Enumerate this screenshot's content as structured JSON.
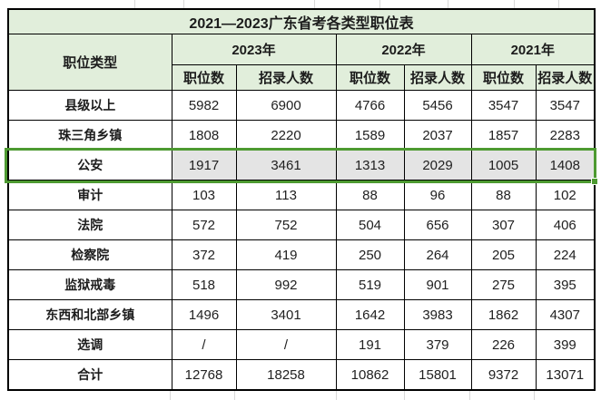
{
  "colors": {
    "header_fill_green": "#e1eedb",
    "table_border": "#000000",
    "selection_border_green": "#4d9a31",
    "selection_fill_gray": "#e4e4e4",
    "faint_gridline": "#d9d9d9",
    "text": "#1c1c1c"
  },
  "table": {
    "title": "2021—2023广东省考各类型职位表",
    "corner_header": "职位类型",
    "year_groups": [
      {
        "label": "2023年",
        "sub_headers": [
          "职位数",
          "招录人数"
        ]
      },
      {
        "label": "2022年",
        "sub_headers": [
          "职位数",
          "招录人数"
        ]
      },
      {
        "label": "2021年",
        "sub_headers": [
          "职位数",
          "招录人数"
        ]
      }
    ],
    "rows": [
      {
        "label": "县级以上",
        "values": [
          "5982",
          "6900",
          "4766",
          "5456",
          "3547",
          "3547"
        ],
        "selected": false
      },
      {
        "label": "珠三角乡镇",
        "values": [
          "1808",
          "2220",
          "1589",
          "2037",
          "1857",
          "2283"
        ],
        "selected": false
      },
      {
        "label": "公安",
        "values": [
          "1917",
          "3461",
          "1313",
          "2029",
          "1005",
          "1408"
        ],
        "selected": true
      },
      {
        "label": "审计",
        "values": [
          "103",
          "113",
          "88",
          "96",
          "88",
          "102"
        ],
        "selected": false
      },
      {
        "label": "法院",
        "values": [
          "572",
          "752",
          "504",
          "656",
          "307",
          "406"
        ],
        "selected": false
      },
      {
        "label": "检察院",
        "values": [
          "372",
          "419",
          "250",
          "264",
          "205",
          "224"
        ],
        "selected": false
      },
      {
        "label": "监狱戒毒",
        "values": [
          "518",
          "992",
          "519",
          "901",
          "275",
          "395"
        ],
        "selected": false
      },
      {
        "label": "东西和北部乡镇",
        "values": [
          "1496",
          "3401",
          "1642",
          "3983",
          "1862",
          "4307"
        ],
        "selected": false
      },
      {
        "label": "选调",
        "values": [
          "/",
          "/",
          "191",
          "379",
          "226",
          "399"
        ],
        "selected": false
      },
      {
        "label": "合计",
        "values": [
          "12768",
          "18258",
          "10862",
          "15801",
          "9372",
          "13071"
        ],
        "selected": false
      }
    ]
  }
}
